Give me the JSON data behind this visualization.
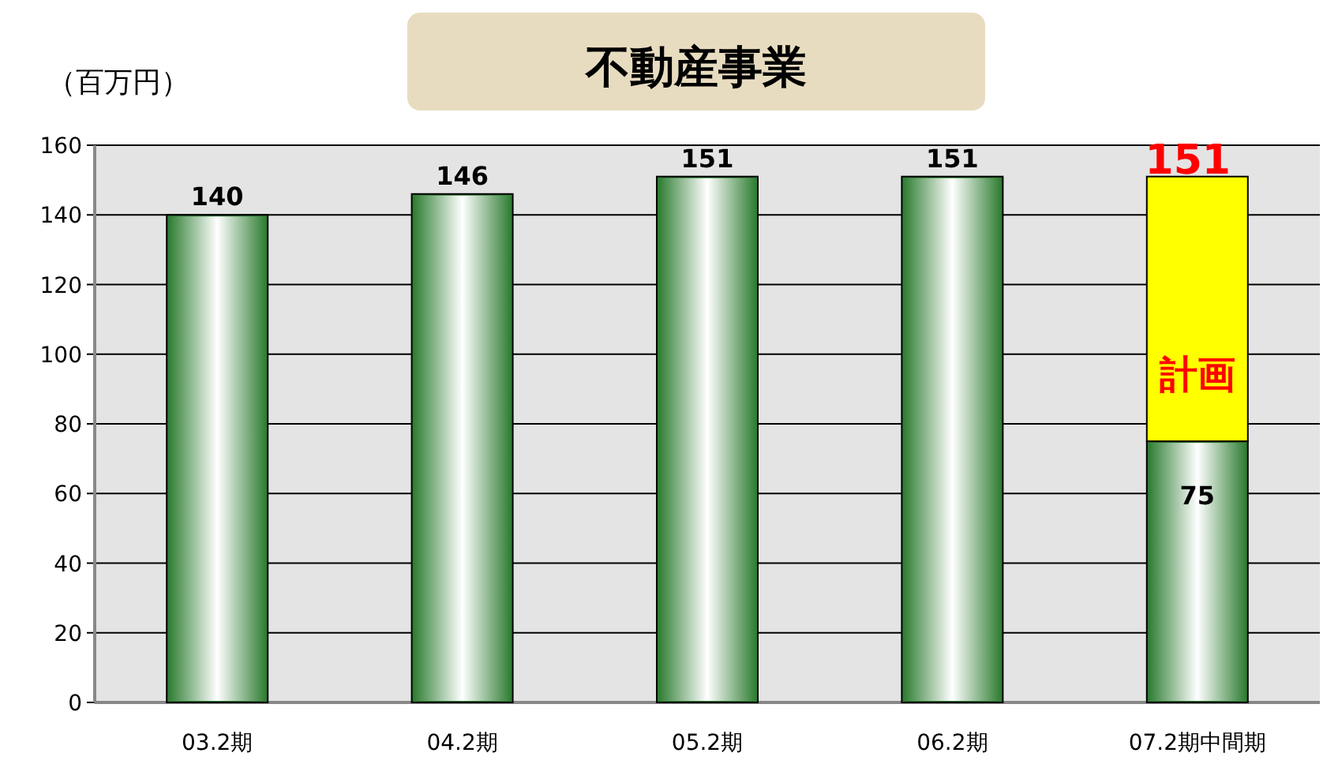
{
  "chart_data": {
    "type": "bar",
    "title": "不動産事業",
    "ylabel": "（百万円）",
    "categories": [
      "03.2期",
      "04.2期",
      "05.2期",
      "06.2期",
      "07.2期中間期"
    ],
    "stacked": true,
    "series": [
      {
        "color": "#2e7d32",
        "values": [
          140,
          146,
          151,
          151,
          75
        ],
        "value_labels": [
          "140",
          "146",
          "151",
          "151",
          "75"
        ]
      },
      {
        "name": "計画",
        "color": "#ffff00",
        "values": [
          null,
          null,
          null,
          null,
          76
        ]
      }
    ],
    "totals": [
      null,
      null,
      null,
      null,
      "151"
    ],
    "ylim": [
      0,
      160
    ],
    "yticks": [
      0,
      20,
      40,
      60,
      80,
      100,
      120,
      140,
      160
    ],
    "grid": "y",
    "legend": false
  }
}
